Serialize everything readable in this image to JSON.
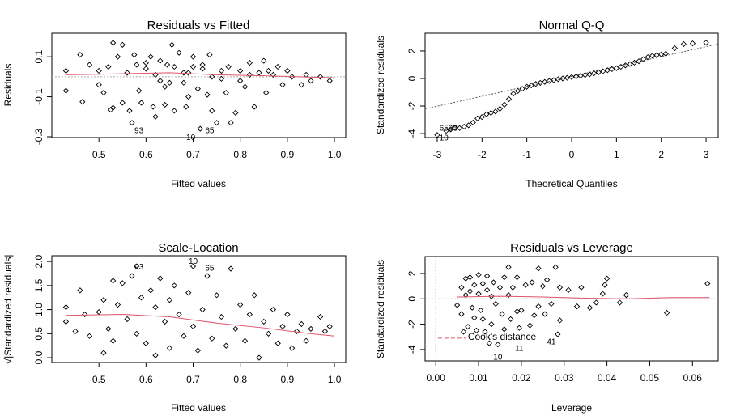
{
  "chart_data": [
    {
      "type": "scatter",
      "title": "Residuals vs Fitted",
      "xlabel": "Fitted values",
      "ylabel": "Residuals",
      "xlim": [
        0.4,
        1.024
      ],
      "ylim": [
        -0.304,
        0.218
      ],
      "xticks": [
        "0.5",
        "0.6",
        "0.7",
        "0.8",
        "0.9",
        "1.0"
      ],
      "yticks": [
        "-0.3",
        "-0.1",
        "0.1"
      ],
      "reference_line": {
        "type": "horizontal",
        "y": 0,
        "style": "dotted",
        "color": "#aaaaaa"
      },
      "smooth_color": "#df536b",
      "smooth": [
        [
          0.43,
          0.01
        ],
        [
          0.55,
          0.015
        ],
        [
          0.65,
          0.02
        ],
        [
          0.75,
          0.01
        ],
        [
          0.85,
          0.005
        ],
        [
          1.0,
          -0.005
        ]
      ],
      "points": [
        [
          0.43,
          0.03
        ],
        [
          0.43,
          -0.07
        ],
        [
          0.46,
          0.11
        ],
        [
          0.465,
          -0.125
        ],
        [
          0.48,
          0.06
        ],
        [
          0.5,
          0.03
        ],
        [
          0.5,
          -0.04
        ],
        [
          0.51,
          -0.08
        ],
        [
          0.52,
          0.05
        ],
        [
          0.525,
          -0.165
        ],
        [
          0.53,
          0.17
        ],
        [
          0.53,
          -0.155
        ],
        [
          0.54,
          0.1
        ],
        [
          0.55,
          0.16
        ],
        [
          0.55,
          -0.13
        ],
        [
          0.56,
          0.02
        ],
        [
          0.565,
          -0.17
        ],
        [
          0.57,
          -0.23
        ],
        [
          0.575,
          0.11
        ],
        [
          0.58,
          0.06
        ],
        [
          0.585,
          -0.07
        ],
        [
          0.59,
          -0.13
        ],
        [
          0.6,
          0.04
        ],
        [
          0.61,
          0.1
        ],
        [
          0.615,
          -0.15
        ],
        [
          0.62,
          -0.2
        ],
        [
          0.63,
          0.08
        ],
        [
          0.64,
          -0.14
        ],
        [
          0.645,
          0.06
        ],
        [
          0.65,
          -0.03
        ],
        [
          0.655,
          0.16
        ],
        [
          0.66,
          -0.17
        ],
        [
          0.67,
          0.12
        ],
        [
          0.68,
          0.02
        ],
        [
          0.685,
          -0.15
        ],
        [
          0.69,
          -0.1
        ],
        [
          0.7,
          0.1
        ],
        [
          0.71,
          -0.06
        ],
        [
          0.715,
          -0.26
        ],
        [
          0.72,
          0.04
        ],
        [
          0.73,
          -0.09
        ],
        [
          0.735,
          0.11
        ],
        [
          0.74,
          -0.17
        ],
        [
          0.75,
          -0.23
        ],
        [
          0.76,
          0.03
        ],
        [
          0.77,
          -0.08
        ],
        [
          0.775,
          0.05
        ],
        [
          0.78,
          -0.23
        ],
        [
          0.79,
          -0.18
        ],
        [
          0.8,
          0.03
        ],
        [
          0.81,
          -0.05
        ],
        [
          0.82,
          0.07
        ],
        [
          0.83,
          -0.15
        ],
        [
          0.84,
          0.02
        ],
        [
          0.85,
          0.08
        ],
        [
          0.855,
          -0.08
        ],
        [
          0.86,
          0.03
        ],
        [
          0.88,
          0.05
        ],
        [
          0.89,
          -0.04
        ],
        [
          0.9,
          0.03
        ],
        [
          0.91,
          0.0
        ],
        [
          0.93,
          -0.04
        ],
        [
          0.94,
          0.01
        ],
        [
          0.95,
          -0.02
        ],
        [
          0.97,
          0.0
        ],
        [
          0.99,
          -0.02
        ],
        [
          0.62,
          0.01
        ],
        [
          0.66,
          0.05
        ],
        [
          0.72,
          0.06
        ],
        [
          0.64,
          -0.05
        ],
        [
          0.68,
          -0.03
        ],
        [
          0.74,
          0.0
        ],
        [
          0.8,
          -0.02
        ],
        [
          0.87,
          0.01
        ],
        [
          0.69,
          0.02
        ],
        [
          0.6,
          0.07
        ],
        [
          0.63,
          -0.02
        ],
        [
          0.7,
          0.05
        ],
        [
          0.76,
          -0.01
        ],
        [
          0.82,
          0.01
        ]
      ],
      "annotations": [
        {
          "text": "93",
          "x": 0.585,
          "y": -0.265
        },
        {
          "text": "10",
          "x": 0.695,
          "y": -0.3
        },
        {
          "text": "65",
          "x": 0.735,
          "y": -0.265
        }
      ]
    },
    {
      "type": "scatter",
      "title": "Normal Q-Q",
      "xlabel": "Theoretical Quantiles",
      "ylabel": "Standardized residuals",
      "xlim": [
        -3.27,
        3.27
      ],
      "ylim": [
        -4.29,
        3.29
      ],
      "xticks": [
        "-3",
        "-2",
        "-1",
        "0",
        "1",
        "2",
        "3"
      ],
      "yticks": [
        "-4",
        "-2",
        "0",
        "2"
      ],
      "reference_line": {
        "type": "line",
        "intercept": 0.15,
        "slope": 0.72,
        "style": "dotted",
        "color": "#555555"
      },
      "points": [
        [
          -3.0,
          -4.1
        ],
        [
          -2.8,
          -3.8
        ],
        [
          -2.7,
          -3.7
        ],
        [
          -2.6,
          -3.6
        ],
        [
          -2.5,
          -3.6
        ],
        [
          -2.4,
          -3.5
        ],
        [
          -2.3,
          -3.4
        ],
        [
          -2.2,
          -3.2
        ],
        [
          -2.1,
          -2.9
        ],
        [
          -2.0,
          -2.8
        ],
        [
          -1.9,
          -2.6
        ],
        [
          -1.8,
          -2.5
        ],
        [
          -1.7,
          -2.4
        ],
        [
          -1.6,
          -2.2
        ],
        [
          -1.5,
          -1.9
        ],
        [
          -1.4,
          -1.5
        ],
        [
          -1.3,
          -1.1
        ],
        [
          -1.2,
          -0.9
        ],
        [
          -1.1,
          -0.75
        ],
        [
          -1.0,
          -0.6
        ],
        [
          -0.9,
          -0.5
        ],
        [
          -0.8,
          -0.4
        ],
        [
          -0.7,
          -0.32
        ],
        [
          -0.6,
          -0.25
        ],
        [
          -0.5,
          -0.18
        ],
        [
          -0.4,
          -0.12
        ],
        [
          -0.3,
          -0.05
        ],
        [
          -0.2,
          0.0
        ],
        [
          -0.1,
          0.05
        ],
        [
          0,
          0.1
        ],
        [
          0.1,
          0.15
        ],
        [
          0.2,
          0.2
        ],
        [
          0.3,
          0.25
        ],
        [
          0.4,
          0.3
        ],
        [
          0.5,
          0.38
        ],
        [
          0.6,
          0.45
        ],
        [
          0.7,
          0.52
        ],
        [
          0.8,
          0.6
        ],
        [
          0.9,
          0.68
        ],
        [
          1.0,
          0.75
        ],
        [
          1.1,
          0.85
        ],
        [
          1.2,
          0.95
        ],
        [
          1.3,
          1.05
        ],
        [
          1.4,
          1.15
        ],
        [
          1.5,
          1.25
        ],
        [
          1.6,
          1.4
        ],
        [
          1.7,
          1.55
        ],
        [
          1.8,
          1.65
        ],
        [
          1.9,
          1.7
        ],
        [
          2.0,
          1.75
        ],
        [
          2.1,
          1.8
        ],
        [
          2.3,
          2.2
        ],
        [
          2.5,
          2.5
        ],
        [
          2.7,
          2.55
        ],
        [
          3.0,
          2.6
        ]
      ],
      "annotations": [
        {
          "text": "6593",
          "x": -2.75,
          "y": -3.55
        },
        {
          "text": "10",
          "x": -2.85,
          "y": -4.15
        }
      ]
    },
    {
      "type": "scatter",
      "title": "Scale-Location",
      "xlabel": "Fitted values",
      "ylabel": "√|Standardized residuals|",
      "xlim": [
        0.4,
        1.024
      ],
      "ylim": [
        -0.1,
        2.12
      ],
      "xticks": [
        "0.5",
        "0.6",
        "0.7",
        "0.8",
        "0.9",
        "1.0"
      ],
      "yticks": [
        "0.0",
        "0.5",
        "1.0",
        "1.5",
        "2.0"
      ],
      "smooth_color": "#df536b",
      "smooth": [
        [
          0.43,
          0.88
        ],
        [
          0.55,
          0.9
        ],
        [
          0.65,
          0.85
        ],
        [
          0.75,
          0.72
        ],
        [
          0.85,
          0.62
        ],
        [
          0.95,
          0.5
        ],
        [
          1.0,
          0.45
        ]
      ],
      "points": [
        [
          0.43,
          0.75
        ],
        [
          0.43,
          1.05
        ],
        [
          0.45,
          0.55
        ],
        [
          0.46,
          1.4
        ],
        [
          0.47,
          0.9
        ],
        [
          0.48,
          0.45
        ],
        [
          0.5,
          0.95
        ],
        [
          0.51,
          1.2
        ],
        [
          0.51,
          0.1
        ],
        [
          0.52,
          0.6
        ],
        [
          0.53,
          1.6
        ],
        [
          0.53,
          0.35
        ],
        [
          0.54,
          1.1
        ],
        [
          0.55,
          1.55
        ],
        [
          0.56,
          0.8
        ],
        [
          0.57,
          1.7
        ],
        [
          0.58,
          1.9
        ],
        [
          0.58,
          0.5
        ],
        [
          0.59,
          1.25
        ],
        [
          0.6,
          0.3
        ],
        [
          0.61,
          1.4
        ],
        [
          0.62,
          1.05
        ],
        [
          0.62,
          0.05
        ],
        [
          0.63,
          1.65
        ],
        [
          0.64,
          0.75
        ],
        [
          0.65,
          1.2
        ],
        [
          0.65,
          0.2
        ],
        [
          0.66,
          1.5
        ],
        [
          0.67,
          0.9
        ],
        [
          0.68,
          0.45
        ],
        [
          0.69,
          1.35
        ],
        [
          0.7,
          0.65
        ],
        [
          0.7,
          1.9
        ],
        [
          0.71,
          0.15
        ],
        [
          0.72,
          1.0
        ],
        [
          0.73,
          1.7
        ],
        [
          0.74,
          0.4
        ],
        [
          0.75,
          1.3
        ],
        [
          0.76,
          0.85
        ],
        [
          0.77,
          0.25
        ],
        [
          0.78,
          1.85
        ],
        [
          0.79,
          0.6
        ],
        [
          0.8,
          1.1
        ],
        [
          0.81,
          0.35
        ],
        [
          0.82,
          0.9
        ],
        [
          0.83,
          1.3
        ],
        [
          0.84,
          0.0
        ],
        [
          0.85,
          0.75
        ],
        [
          0.86,
          0.5
        ],
        [
          0.87,
          1.0
        ],
        [
          0.88,
          0.3
        ],
        [
          0.89,
          0.65
        ],
        [
          0.9,
          0.9
        ],
        [
          0.91,
          0.2
        ],
        [
          0.92,
          0.55
        ],
        [
          0.93,
          0.7
        ],
        [
          0.94,
          0.35
        ],
        [
          0.95,
          0.6
        ],
        [
          0.97,
          0.85
        ],
        [
          0.98,
          0.55
        ],
        [
          0.99,
          0.65
        ]
      ],
      "annotations": [
        {
          "text": "93",
          "x": 0.585,
          "y": 1.9
        },
        {
          "text": "10",
          "x": 0.7,
          "y": 2.02
        },
        {
          "text": "65",
          "x": 0.735,
          "y": 1.88
        }
      ]
    },
    {
      "type": "scatter",
      "title": "Residuals vs Leverage",
      "xlabel": "Leverage",
      "ylabel": "Standardized residuals",
      "xlim": [
        -0.0025,
        0.066
      ],
      "ylim": [
        -4.9,
        3.34
      ],
      "xticks": [
        "0.00",
        "0.01",
        "0.02",
        "0.03",
        "0.04",
        "0.05",
        "0.06"
      ],
      "yticks": [
        "-4",
        "-2",
        "0",
        "2"
      ],
      "reference_line": {
        "type": "horizontal",
        "y": 0,
        "style": "dotted",
        "color": "#aaaaaa"
      },
      "smooth_color": "#df536b",
      "smooth": [
        [
          0.005,
          0.15
        ],
        [
          0.015,
          0.2
        ],
        [
          0.025,
          0.15
        ],
        [
          0.035,
          0.05
        ],
        [
          0.045,
          0.0
        ],
        [
          0.055,
          0.1
        ],
        [
          0.064,
          0.1
        ]
      ],
      "cooks_line": {
        "label": "Cook's distance",
        "y": -3.1,
        "xrange": [
          0.0005,
          0.007
        ],
        "color": "#df536b"
      },
      "points": [
        [
          0.005,
          -0.5
        ],
        [
          0.006,
          0.9
        ],
        [
          0.006,
          -1.2
        ],
        [
          0.0065,
          -2.6
        ],
        [
          0.007,
          1.6
        ],
        [
          0.007,
          0.3
        ],
        [
          0.0075,
          -2.2
        ],
        [
          0.008,
          1.7
        ],
        [
          0.008,
          0.6
        ],
        [
          0.0085,
          -0.7
        ],
        [
          0.009,
          1.1
        ],
        [
          0.009,
          -1.5
        ],
        [
          0.0095,
          -2.5
        ],
        [
          0.01,
          1.9
        ],
        [
          0.01,
          0.4
        ],
        [
          0.0105,
          -0.9
        ],
        [
          0.011,
          1.2
        ],
        [
          0.011,
          -1.6
        ],
        [
          0.0115,
          -2.6
        ],
        [
          0.012,
          1.8
        ],
        [
          0.012,
          0.7
        ],
        [
          0.0125,
          -3.5
        ],
        [
          0.013,
          -2.0
        ],
        [
          0.013,
          0.2
        ],
        [
          0.0135,
          1.3
        ],
        [
          0.014,
          -0.4
        ],
        [
          0.0145,
          -3.6
        ],
        [
          0.015,
          0.9
        ],
        [
          0.0155,
          -1.2
        ],
        [
          0.016,
          -2.4
        ],
        [
          0.016,
          1.7
        ],
        [
          0.017,
          2.5
        ],
        [
          0.017,
          0.3
        ],
        [
          0.0175,
          -1.6
        ],
        [
          0.018,
          0.9
        ],
        [
          0.019,
          1.7
        ],
        [
          0.019,
          -1.0
        ],
        [
          0.0195,
          -2.3
        ],
        [
          0.02,
          -0.9
        ],
        [
          0.021,
          1.1
        ],
        [
          0.022,
          -2.1
        ],
        [
          0.0225,
          1.3
        ],
        [
          0.023,
          -1.3
        ],
        [
          0.024,
          -0.6
        ],
        [
          0.024,
          2.4
        ],
        [
          0.025,
          1.0
        ],
        [
          0.0255,
          -1.2
        ],
        [
          0.026,
          1.5
        ],
        [
          0.027,
          -0.4
        ],
        [
          0.028,
          2.5
        ],
        [
          0.0285,
          -2.8
        ],
        [
          0.029,
          0.9
        ],
        [
          0.029,
          -1.7
        ],
        [
          0.031,
          0.7
        ],
        [
          0.033,
          -0.6
        ],
        [
          0.034,
          0.9
        ],
        [
          0.036,
          -0.7
        ],
        [
          0.0375,
          -0.3
        ],
        [
          0.039,
          0.4
        ],
        [
          0.0395,
          1.1
        ],
        [
          0.04,
          1.6
        ],
        [
          0.043,
          -0.3
        ],
        [
          0.0445,
          0.3
        ],
        [
          0.054,
          -1.1
        ],
        [
          0.0635,
          1.2
        ]
      ],
      "annotations": [
        {
          "text": "41",
          "x": 0.027,
          "y": -3.35
        },
        {
          "text": "11",
          "x": 0.0195,
          "y": -3.85
        },
        {
          "text": "10",
          "x": 0.0145,
          "y": -4.55
        }
      ]
    }
  ]
}
